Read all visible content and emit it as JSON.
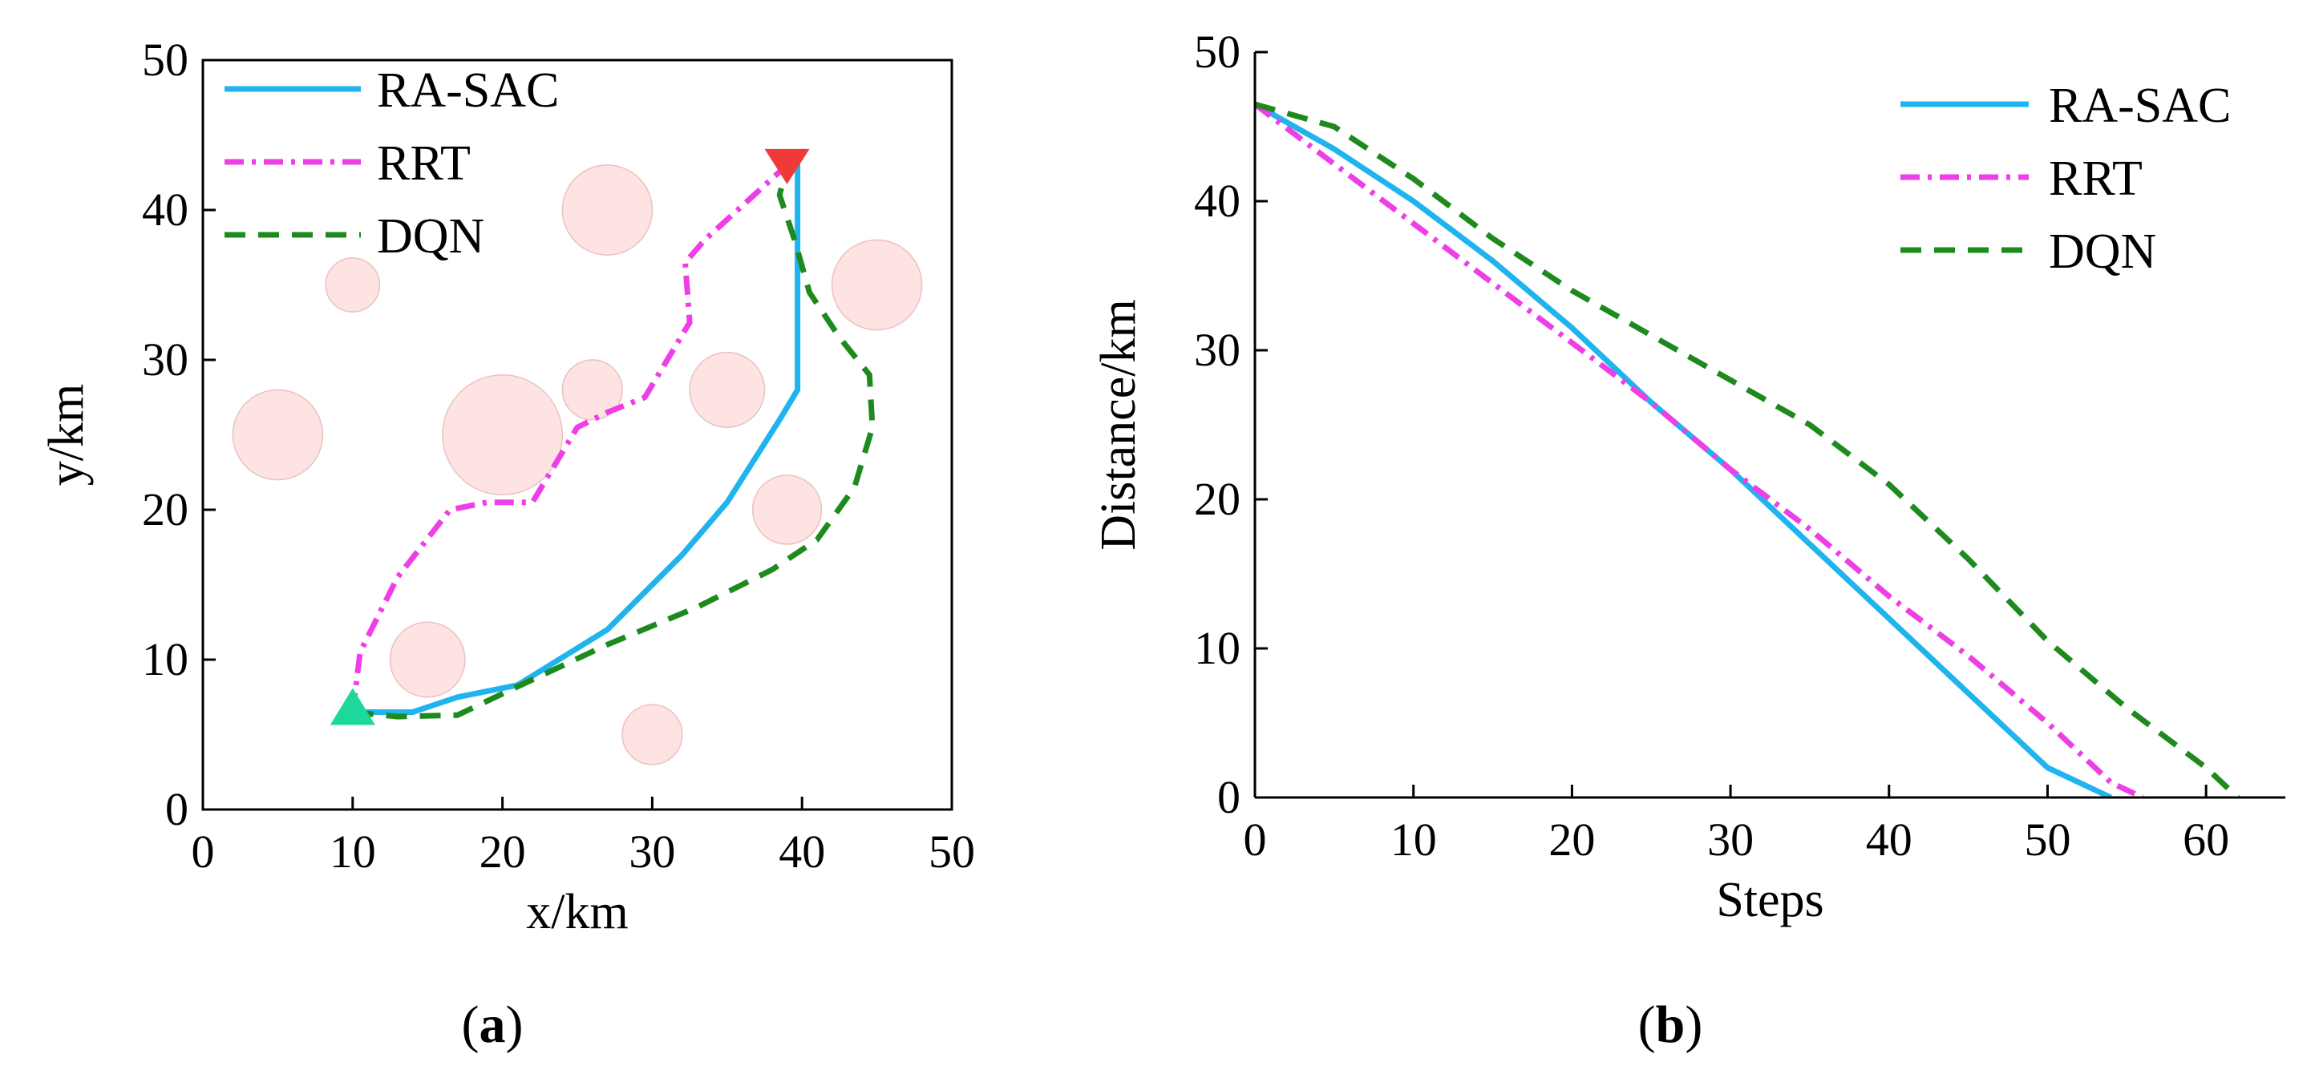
{
  "colors": {
    "ra_sac": "#1fb4ee",
    "rrt": "#ee3ee6",
    "dqn": "#1e8a1e",
    "obstacle_fill": "#fde3e1",
    "obstacle_stroke": "#e9c2c0",
    "start_marker": "#1ed79a",
    "goal_marker": "#f03a3a",
    "axis": "#000000"
  },
  "panel_labels": {
    "a": {
      "open": "(",
      "letter": "a",
      "close": ")"
    },
    "b": {
      "open": "(",
      "letter": "b",
      "close": ")"
    }
  },
  "chart_data": [
    {
      "id": "a",
      "type": "line",
      "title": "",
      "xlabel": "x/km",
      "ylabel": "y/km",
      "xlim": [
        0,
        50
      ],
      "ylim": [
        0,
        50
      ],
      "xticks": [
        0,
        10,
        20,
        30,
        40,
        50
      ],
      "yticks": [
        0,
        10,
        20,
        30,
        40,
        50
      ],
      "grid": false,
      "legend": {
        "position": "top-left",
        "entries": [
          "RA-SAC",
          "RRT",
          "DQN"
        ]
      },
      "start": {
        "x": 10,
        "y": 6.5,
        "marker": "triangle-up"
      },
      "goal": {
        "x": 39,
        "y": 43,
        "marker": "triangle-down"
      },
      "obstacles": [
        {
          "x": 27,
          "y": 40,
          "r": 3
        },
        {
          "x": 10,
          "y": 35,
          "r": 1.8
        },
        {
          "x": 45,
          "y": 35,
          "r": 3
        },
        {
          "x": 5,
          "y": 25,
          "r": 3
        },
        {
          "x": 20,
          "y": 25,
          "r": 4
        },
        {
          "x": 26,
          "y": 28,
          "r": 2
        },
        {
          "x": 35,
          "y": 28,
          "r": 2.5
        },
        {
          "x": 39,
          "y": 20,
          "r": 2.3
        },
        {
          "x": 15,
          "y": 10,
          "r": 2.5
        },
        {
          "x": 30,
          "y": 5,
          "r": 2
        }
      ],
      "series": [
        {
          "name": "RA-SAC",
          "style": "solid",
          "x": [
            10,
            14,
            17,
            21,
            27,
            32,
            35,
            38.5,
            39.7,
            39.7,
            39.3
          ],
          "y": [
            6.5,
            6.5,
            7.5,
            8.3,
            12,
            17,
            20.5,
            26,
            28,
            43,
            43
          ]
        },
        {
          "name": "RRT",
          "style": "dashdot",
          "x": [
            10,
            10.5,
            13,
            16.5,
            19,
            22,
            25,
            27,
            29.5,
            32.5,
            32.2,
            33.5,
            39
          ],
          "y": [
            6.5,
            10.5,
            15.5,
            20,
            20.5,
            20.5,
            25.5,
            26.5,
            27.5,
            32.5,
            36.5,
            38,
            43
          ]
        },
        {
          "name": "DQN",
          "style": "dashed",
          "x": [
            10,
            13,
            17,
            21,
            27,
            33,
            38,
            41,
            43.5,
            44.7,
            44.5,
            42.5,
            40.5,
            39.5,
            38.5,
            39
          ],
          "y": [
            6.5,
            6.2,
            6.3,
            8.2,
            11,
            13.5,
            16,
            18,
            21.5,
            25.5,
            29,
            31.5,
            34.5,
            38,
            41,
            43
          ]
        }
      ]
    },
    {
      "id": "b",
      "type": "line",
      "title": "",
      "xlabel": "Steps",
      "ylabel": "Distance/km",
      "xlim": [
        0,
        65
      ],
      "ylim": [
        0,
        50
      ],
      "xticks": [
        0,
        10,
        20,
        30,
        40,
        50,
        60
      ],
      "yticks": [
        0,
        10,
        20,
        30,
        40,
        50
      ],
      "grid": false,
      "legend": {
        "position": "top-right",
        "entries": [
          "RA-SAC",
          "RRT",
          "DQN"
        ]
      },
      "series": [
        {
          "name": "RA-SAC",
          "style": "solid",
          "x": [
            0,
            5,
            10,
            15,
            20,
            25,
            30,
            35,
            40,
            45,
            50,
            54
          ],
          "y": [
            46.5,
            43.5,
            40,
            36,
            31.5,
            26.5,
            22,
            17,
            12,
            7,
            2,
            0
          ]
        },
        {
          "name": "RRT",
          "style": "dashdot",
          "x": [
            0,
            5,
            10,
            15,
            20,
            25,
            30,
            35,
            40,
            45,
            50,
            54,
            56
          ],
          "y": [
            46.5,
            42.5,
            38.5,
            34.5,
            30.5,
            26.5,
            22,
            18,
            13.5,
            9.5,
            5,
            1,
            0
          ]
        },
        {
          "name": "DQN",
          "style": "dashed",
          "x": [
            0,
            5,
            10,
            15,
            20,
            25,
            30,
            35,
            40,
            45,
            50,
            55,
            60,
            62
          ],
          "y": [
            46.5,
            45,
            41.5,
            37.5,
            34,
            31,
            28,
            25,
            21,
            16,
            10.5,
            6,
            2,
            0
          ]
        }
      ]
    }
  ]
}
